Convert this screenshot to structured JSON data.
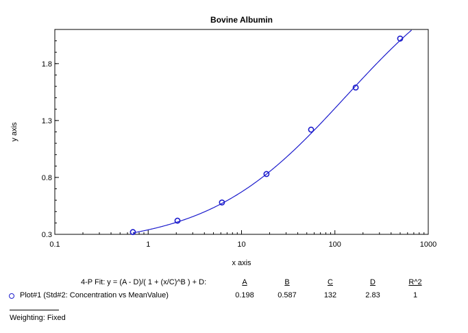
{
  "chart_data": {
    "type": "scatter",
    "title": "Bovine Albumin",
    "xlabel": "x axis",
    "ylabel": "y axis",
    "xscale": "log",
    "xlim": [
      0.1,
      1000
    ],
    "ylim": [
      0.3,
      2.1
    ],
    "xticks": [
      0.1,
      1,
      10,
      100,
      1000
    ],
    "xtick_labels": [
      "0.1",
      "1",
      "10",
      "100",
      "1000"
    ],
    "yticks": [
      0.3,
      0.8,
      1.3,
      1.8
    ],
    "ytick_labels": [
      "0.3",
      "0.8",
      "1.3",
      "1.8"
    ],
    "grid": false,
    "series": [
      {
        "name": "Plot#1 (Std#2: Concentration vs MeanValue)",
        "color": "#1a1acc",
        "x": [
          0.686,
          2.06,
          6.17,
          18.5,
          55.6,
          167,
          500
        ],
        "y": [
          0.32,
          0.42,
          0.58,
          0.83,
          1.22,
          1.59,
          2.02
        ]
      }
    ],
    "fit": {
      "model": "4-P Fit: y = (A - D)/( 1 + (x/C)^B ) + D:",
      "A": 0.198,
      "B": 0.587,
      "C": 132,
      "D": 2.83
    }
  },
  "fit_table": {
    "equation": "4-P Fit: y = (A - D)/( 1 + (x/C)^B ) + D:",
    "headers": [
      "A",
      "B",
      "C",
      "D",
      "R^2"
    ],
    "values": [
      "0.198",
      "0.587",
      "132",
      "2.83",
      "1"
    ],
    "row_label": "Plot#1 (Std#2: Concentration vs MeanValue)"
  },
  "weighting": "Weighting: Fixed"
}
